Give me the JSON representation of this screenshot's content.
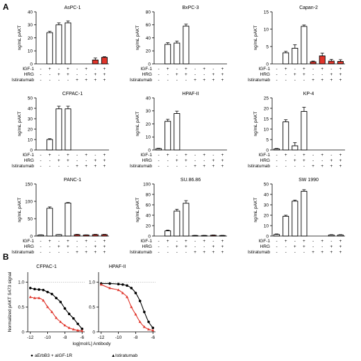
{
  "figure": {
    "panel_a_label": "A",
    "panel_b_label": "B",
    "row_labels": [
      "IGF-1",
      "HRG",
      "Istiratumab"
    ],
    "conditions": [
      {
        "IGF-1": "-",
        "HRG": "-",
        "Istiratumab": "-"
      },
      {
        "IGF-1": "+",
        "HRG": "-",
        "Istiratumab": "-"
      },
      {
        "IGF-1": "-",
        "HRG": "+",
        "Istiratumab": "-"
      },
      {
        "IGF-1": "+",
        "HRG": "+",
        "Istiratumab": "-"
      },
      {
        "IGF-1": "-",
        "HRG": "-",
        "Istiratumab": "+"
      },
      {
        "IGF-1": "+",
        "HRG": "-",
        "Istiratumab": "+"
      },
      {
        "IGF-1": "-",
        "HRG": "+",
        "Istiratumab": "+"
      },
      {
        "IGF-1": "+",
        "HRG": "+",
        "Istiratumab": "+"
      }
    ],
    "colors": {
      "control": "#ffffff",
      "treated_highlight": "#e0352b",
      "axis": "#000000",
      "curve_black": "#000000",
      "curve_red": "#e0352b",
      "refline": "#aaaaaa"
    }
  },
  "chart_data": [
    {
      "type": "bar",
      "title": "AsPC-1",
      "ylabel": "ng/mL pAKT",
      "ylim": [
        0,
        40
      ],
      "yticks": [
        0,
        10,
        20,
        30,
        40
      ],
      "values": [
        0,
        24,
        30,
        31.5,
        0,
        0,
        3,
        5
      ],
      "errors": [
        0,
        1,
        1.5,
        1.5,
        0,
        0,
        1.5,
        0.5
      ],
      "highlight": [
        false,
        false,
        false,
        false,
        false,
        false,
        true,
        true
      ]
    },
    {
      "type": "bar",
      "title": "BxPC-3",
      "ylabel": "ng/mL pAKT",
      "ylim": [
        0,
        80
      ],
      "yticks": [
        0,
        20,
        40,
        60,
        80
      ],
      "values": [
        0,
        30,
        32,
        58,
        0,
        0,
        0,
        0
      ],
      "errors": [
        0,
        2.5,
        3,
        3,
        0,
        0,
        0,
        0
      ],
      "highlight": [
        false,
        false,
        false,
        false,
        false,
        false,
        false,
        false
      ]
    },
    {
      "type": "bar",
      "title": "Capan-2",
      "ylabel": "ng/mL pAKT",
      "ylim": [
        0,
        15
      ],
      "yticks": [
        0,
        5,
        10,
        15
      ],
      "values": [
        0,
        3.2,
        4.5,
        10.8,
        0.6,
        2.3,
        0.8,
        0.7
      ],
      "errors": [
        0,
        0.4,
        1,
        0.4,
        0.2,
        0.8,
        0.5,
        0.5
      ],
      "highlight": [
        false,
        false,
        false,
        false,
        true,
        true,
        true,
        true
      ]
    },
    {
      "type": "bar",
      "title": "CFPAC-1",
      "ylabel": "ng/mL pAKT",
      "ylim": [
        0,
        50
      ],
      "yticks": [
        0,
        10,
        20,
        30,
        40,
        50
      ],
      "values": [
        0,
        10,
        39.5,
        39.5,
        0,
        0,
        0,
        0
      ],
      "errors": [
        0,
        0.8,
        2.5,
        2.5,
        0,
        0,
        0,
        0
      ],
      "highlight": [
        false,
        false,
        false,
        false,
        false,
        false,
        false,
        false
      ]
    },
    {
      "type": "bar",
      "title": "HPAF-II",
      "ylabel": "ng/mL pAKT",
      "ylim": [
        0,
        40
      ],
      "yticks": [
        0,
        10,
        20,
        30,
        40
      ],
      "values": [
        1,
        22,
        28,
        0,
        0,
        0,
        0,
        0
      ],
      "errors": [
        0.3,
        1.5,
        1.8,
        0,
        0,
        0,
        0,
        0
      ],
      "highlight": [
        false,
        false,
        false,
        false,
        false,
        false,
        false,
        false
      ]
    },
    {
      "type": "bar",
      "title": "KP-4",
      "ylabel": "ng/mL pAKT",
      "ylim": [
        0,
        25
      ],
      "yticks": [
        0,
        5,
        10,
        15,
        20,
        25
      ],
      "values": [
        0.5,
        13.5,
        2,
        18.5,
        0,
        0,
        0,
        0
      ],
      "errors": [
        0.2,
        1,
        1.5,
        2,
        0,
        0,
        0,
        0
      ],
      "highlight": [
        false,
        false,
        false,
        false,
        false,
        false,
        false,
        false
      ]
    },
    {
      "type": "bar",
      "title": "PANC-1",
      "ylabel": "ng/mL pAKT",
      "ylim": [
        0,
        150
      ],
      "yticks": [
        0,
        50,
        100,
        150
      ],
      "values": [
        3,
        80,
        4,
        95,
        4,
        3,
        4,
        4
      ],
      "errors": [
        0.5,
        4,
        0.5,
        1.5,
        1,
        0.5,
        1,
        1
      ],
      "highlight": [
        false,
        false,
        false,
        false,
        true,
        true,
        true,
        true
      ]
    },
    {
      "type": "bar",
      "title": "SU.86.86",
      "ylabel": "ng/mL pAKT",
      "ylim": [
        0,
        100
      ],
      "yticks": [
        0,
        20,
        40,
        60,
        80,
        100
      ],
      "values": [
        0,
        10,
        48,
        63,
        1,
        1,
        1.5,
        1
      ],
      "errors": [
        0,
        1.5,
        3.5,
        5,
        0.3,
        0.3,
        0.5,
        0.3
      ],
      "highlight": [
        false,
        false,
        false,
        false,
        true,
        true,
        true,
        true
      ]
    },
    {
      "type": "bar",
      "title": "SW 1990",
      "ylabel": "ng/mL pAKT",
      "ylim": [
        0,
        50
      ],
      "yticks": [
        0,
        10,
        20,
        30,
        40,
        50
      ],
      "values": [
        1.5,
        19,
        33.5,
        43,
        0,
        0,
        1,
        1
      ],
      "errors": [
        0.5,
        1,
        1,
        1.5,
        0,
        0,
        0.3,
        0.3
      ],
      "highlight": [
        false,
        false,
        false,
        false,
        false,
        false,
        false,
        false
      ]
    },
    {
      "type": "scatter",
      "title": "CFPAC-1",
      "ylabel": "Normalized pAKT S473 signal",
      "xlabel": "",
      "xlim": [
        -12.3,
        -5.7
      ],
      "ylim": [
        0,
        1.2
      ],
      "yticks": [
        0,
        0.5,
        1.0
      ],
      "xticks": [
        -12,
        -10,
        -8,
        -6
      ],
      "reference_y": 1.0,
      "series": [
        {
          "color_key": "curve_black",
          "x": [
            -12,
            -11.5,
            -11,
            -10.5,
            -10,
            -9.5,
            -9,
            -8.5,
            -8,
            -7.5,
            -7,
            -6.5,
            -6
          ],
          "y": [
            0.88,
            0.86,
            0.85,
            0.84,
            0.8,
            0.76,
            0.68,
            0.6,
            0.47,
            0.36,
            0.27,
            0.16,
            0.06
          ]
        },
        {
          "color_key": "curve_red",
          "x": [
            -12,
            -11.5,
            -11,
            -10.5,
            -10,
            -9.5,
            -9,
            -8.5,
            -8,
            -7.5,
            -7,
            -6.5,
            -6
          ],
          "y": [
            0.7,
            0.68,
            0.68,
            0.63,
            0.5,
            0.4,
            0.28,
            0.2,
            0.13,
            0.08,
            0.05,
            0.03,
            0.02
          ]
        }
      ]
    },
    {
      "type": "scatter",
      "title": "HPAF-II",
      "ylabel": "",
      "xlabel": "log[mol/L] Antibody",
      "xlim": [
        -12.3,
        -5.7
      ],
      "ylim": [
        0,
        1.2
      ],
      "yticks": [
        0,
        0.5,
        1.0
      ],
      "xticks": [
        -12,
        -10,
        -8,
        -6
      ],
      "reference_y": 1.0,
      "series": [
        {
          "color_key": "curve_black",
          "x": [
            -12,
            -11,
            -10,
            -9.5,
            -9,
            -8.5,
            -8,
            -7.5,
            -7,
            -6.5,
            -6
          ],
          "y": [
            0.97,
            0.97,
            0.96,
            0.95,
            0.93,
            0.88,
            0.78,
            0.62,
            0.4,
            0.2,
            0.08
          ]
        },
        {
          "color_key": "curve_red",
          "x": [
            -12,
            -11,
            -10,
            -9.5,
            -9,
            -8.5,
            -8,
            -7.5,
            -7,
            -6.5,
            -6
          ],
          "y": [
            0.95,
            0.88,
            0.84,
            0.78,
            0.7,
            0.5,
            0.35,
            0.2,
            0.1,
            0.05,
            0.03
          ]
        }
      ]
    }
  ],
  "legend": {
    "items": [
      "aErbB3 + aIGF-1R",
      "Istiratumab"
    ],
    "symbols": [
      "●",
      "▲"
    ]
  }
}
